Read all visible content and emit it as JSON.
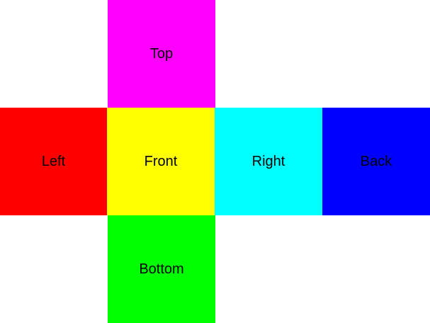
{
  "faces": {
    "top": {
      "label": "Top",
      "color": "#ff00ff"
    },
    "left": {
      "label": "Left",
      "color": "#ff0000"
    },
    "front": {
      "label": "Front",
      "color": "#ffff00"
    },
    "right": {
      "label": "Right",
      "color": "#00ffff"
    },
    "back": {
      "label": "Back",
      "color": "#0000ff"
    },
    "bottom": {
      "label": "Bottom",
      "color": "#00ff00"
    }
  }
}
